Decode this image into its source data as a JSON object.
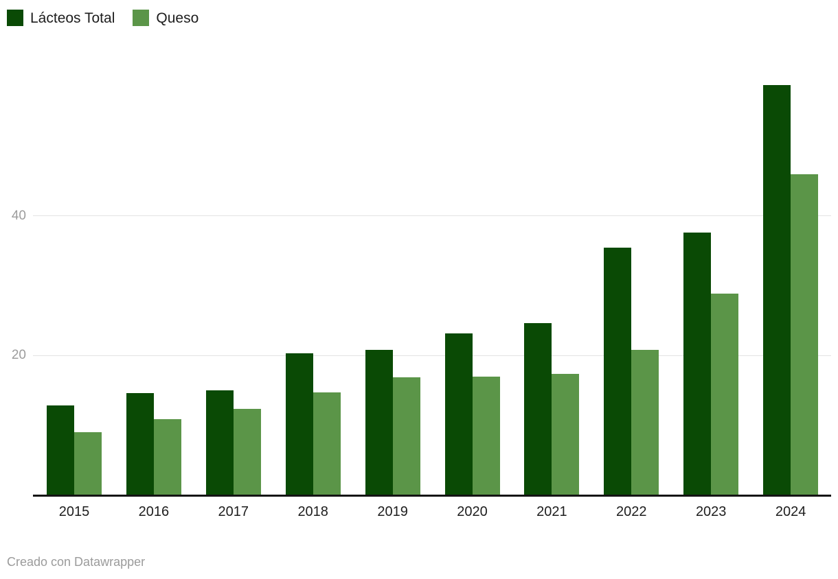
{
  "footer": {
    "text": "Creado con Datawrapper"
  },
  "chart_data": {
    "type": "bar",
    "grouped": true,
    "title": "",
    "xlabel": "",
    "ylabel": "",
    "categories": [
      "2015",
      "2016",
      "2017",
      "2018",
      "2019",
      "2020",
      "2021",
      "2022",
      "2023",
      "2024"
    ],
    "series": [
      {
        "name": "Lácteos Total",
        "color": "#0a4a05",
        "values": [
          12.9,
          14.6,
          15.0,
          20.3,
          20.8,
          23.2,
          24.7,
          35.5,
          37.6,
          58.7
        ]
      },
      {
        "name": "Queso",
        "color": "#5b9548",
        "values": [
          9.0,
          10.9,
          12.4,
          14.7,
          16.9,
          17.0,
          17.4,
          20.8,
          28.9,
          46.0
        ]
      }
    ],
    "yticks": [
      20,
      40
    ],
    "ylim": [
      0,
      60
    ],
    "grid": "horizontal",
    "legend_position": "top-left",
    "attribution": "Creado con Datawrapper"
  }
}
